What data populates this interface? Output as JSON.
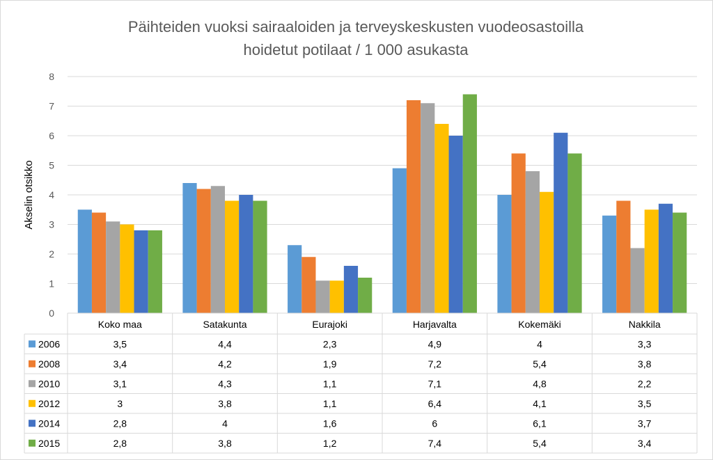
{
  "chart_data": {
    "type": "bar",
    "title_lines": [
      "Päihteiden vuoksi sairaaloiden ja terveyskeskusten vuodeosastoilla",
      "hoidetut potilaat / 1 000 asukasta"
    ],
    "ylabel": "Akselin otsikko",
    "ylim": [
      0,
      8
    ],
    "yticks": [
      "0",
      "1",
      "2",
      "3",
      "4",
      "5",
      "6",
      "7",
      "8"
    ],
    "grid": true,
    "categories": [
      "Koko maa",
      "Satakunta",
      "Eurajoki",
      "Harjavalta",
      "Kokemäki",
      "Nakkila"
    ],
    "series": [
      {
        "name": "2006",
        "color": "#5b9bd5",
        "values": [
          3.5,
          4.4,
          2.3,
          4.9,
          4.0,
          3.3
        ],
        "labels": [
          "3,5",
          "4,4",
          "2,3",
          "4,9",
          "4",
          "3,3"
        ]
      },
      {
        "name": "2008",
        "color": "#ed7d31",
        "values": [
          3.4,
          4.2,
          1.9,
          7.2,
          5.4,
          3.8
        ],
        "labels": [
          "3,4",
          "4,2",
          "1,9",
          "7,2",
          "5,4",
          "3,8"
        ]
      },
      {
        "name": "2010",
        "color": "#a5a5a5",
        "values": [
          3.1,
          4.3,
          1.1,
          7.1,
          4.8,
          2.2
        ],
        "labels": [
          "3,1",
          "4,3",
          "1,1",
          "7,1",
          "4,8",
          "2,2"
        ]
      },
      {
        "name": "2012",
        "color": "#ffc000",
        "values": [
          3.0,
          3.8,
          1.1,
          6.4,
          4.1,
          3.5
        ],
        "labels": [
          "3",
          "3,8",
          "1,1",
          "6,4",
          "4,1",
          "3,5"
        ]
      },
      {
        "name": "2014",
        "color": "#4472c4",
        "values": [
          2.8,
          4.0,
          1.6,
          6.0,
          6.1,
          3.7
        ],
        "labels": [
          "2,8",
          "4",
          "1,6",
          "6",
          "6,1",
          "3,7"
        ]
      },
      {
        "name": "2015",
        "color": "#70ad47",
        "values": [
          2.8,
          3.8,
          1.2,
          7.4,
          5.4,
          3.4
        ],
        "labels": [
          "2,8",
          "3,8",
          "1,2",
          "7,4",
          "5,4",
          "3,4"
        ]
      }
    ],
    "legend": "data-table"
  }
}
